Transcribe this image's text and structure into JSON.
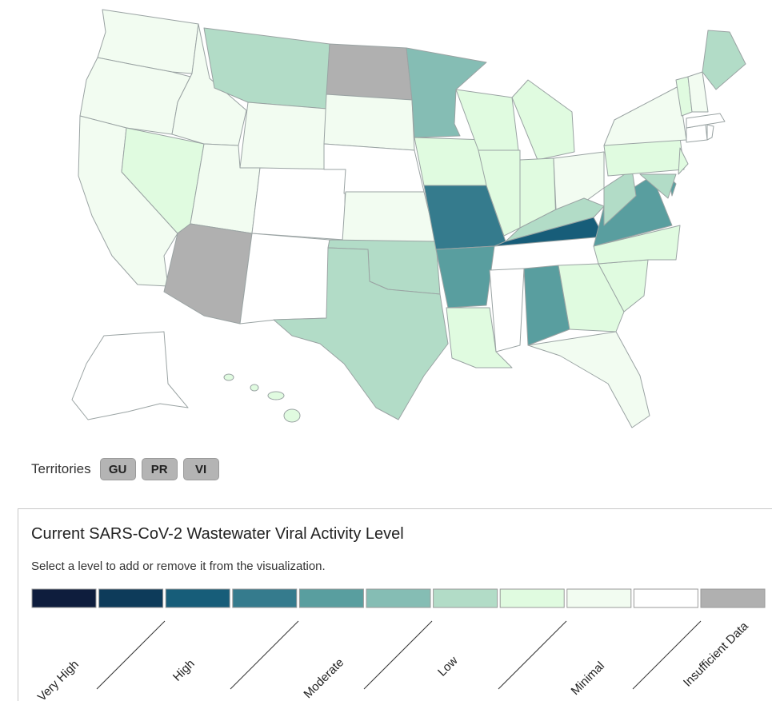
{
  "map": {
    "states": [
      {
        "id": "WA",
        "level": "Minimal"
      },
      {
        "id": "OR",
        "level": "Minimal"
      },
      {
        "id": "CA",
        "level": "Minimal"
      },
      {
        "id": "NV",
        "level": "Low-Minimal"
      },
      {
        "id": "ID",
        "level": "Minimal"
      },
      {
        "id": "MT",
        "level": "Low"
      },
      {
        "id": "WY",
        "level": "Minimal"
      },
      {
        "id": "UT",
        "level": "Minimal"
      },
      {
        "id": "AZ",
        "level": "Insufficient Data"
      },
      {
        "id": "CO",
        "level": "Very Low"
      },
      {
        "id": "NM",
        "level": "Very Low"
      },
      {
        "id": "ND",
        "level": "Insufficient Data"
      },
      {
        "id": "SD",
        "level": "Minimal"
      },
      {
        "id": "NE",
        "level": "Very Low"
      },
      {
        "id": "KS",
        "level": "Minimal"
      },
      {
        "id": "OK",
        "level": "Low"
      },
      {
        "id": "TX",
        "level": "Low"
      },
      {
        "id": "MN",
        "level": "Moderate-Low"
      },
      {
        "id": "IA",
        "level": "Low-Minimal"
      },
      {
        "id": "MO",
        "level": "High-Moderate"
      },
      {
        "id": "AR",
        "level": "Moderate"
      },
      {
        "id": "LA",
        "level": "Low-Minimal"
      },
      {
        "id": "WI",
        "level": "Low-Minimal"
      },
      {
        "id": "IL",
        "level": "Low-Minimal"
      },
      {
        "id": "MI",
        "level": "Low-Minimal"
      },
      {
        "id": "IN",
        "level": "Low-Minimal"
      },
      {
        "id": "OH",
        "level": "Minimal"
      },
      {
        "id": "KY",
        "level": "Low"
      },
      {
        "id": "TN",
        "level": "High"
      },
      {
        "id": "MS",
        "level": "Very Low"
      },
      {
        "id": "AL",
        "level": "Moderate"
      },
      {
        "id": "GA",
        "level": "Low-Minimal"
      },
      {
        "id": "FL",
        "level": "Minimal"
      },
      {
        "id": "SC",
        "level": "Low-Minimal"
      },
      {
        "id": "NC",
        "level": "Low-Minimal"
      },
      {
        "id": "VA",
        "level": "Moderate"
      },
      {
        "id": "WV",
        "level": "Low"
      },
      {
        "id": "PA",
        "level": "Low-Minimal"
      },
      {
        "id": "NY",
        "level": "Minimal"
      },
      {
        "id": "NJ",
        "level": "Low-Minimal"
      },
      {
        "id": "DE",
        "level": "Moderate"
      },
      {
        "id": "MD",
        "level": "Low"
      },
      {
        "id": "CT",
        "level": "Very Low"
      },
      {
        "id": "RI",
        "level": "Very Low"
      },
      {
        "id": "MA",
        "level": "Very Low"
      },
      {
        "id": "VT",
        "level": "Low-Minimal"
      },
      {
        "id": "NH",
        "level": "Minimal"
      },
      {
        "id": "ME",
        "level": "Low"
      },
      {
        "id": "AK",
        "level": "Very Low"
      },
      {
        "id": "HI",
        "level": "Low-Minimal"
      }
    ]
  },
  "territories": {
    "label": "Territories",
    "buttons": [
      "GU",
      "PR",
      "VI"
    ]
  },
  "legend": {
    "title": "Current SARS-CoV-2 Wastewater Viral Activity Level",
    "subtitle": "Select a level to add or remove it from the visualization.",
    "swatches": [
      "#0e1d3d",
      "#0d3b5a",
      "#175d79",
      "#357b8d",
      "#599e9f",
      "#85bdb4",
      "#b2dcc7",
      "#e0fbe0",
      "#f2fcf1",
      "#ffffff",
      "#b0b0b0"
    ],
    "labels": [
      "Very High",
      "High",
      "Moderate",
      "Low",
      "Minimal",
      "Insufficient Data"
    ]
  },
  "colors": {
    "High": "#175d79",
    "High-Moderate": "#357b8d",
    "Moderate": "#599e9f",
    "Moderate-Low": "#85bdb4",
    "Low": "#b2dcc7",
    "Low-Minimal": "#e0fbe0",
    "Minimal": "#f2fcf1",
    "Very Low": "#ffffff",
    "Insufficient Data": "#b0b0b0"
  }
}
